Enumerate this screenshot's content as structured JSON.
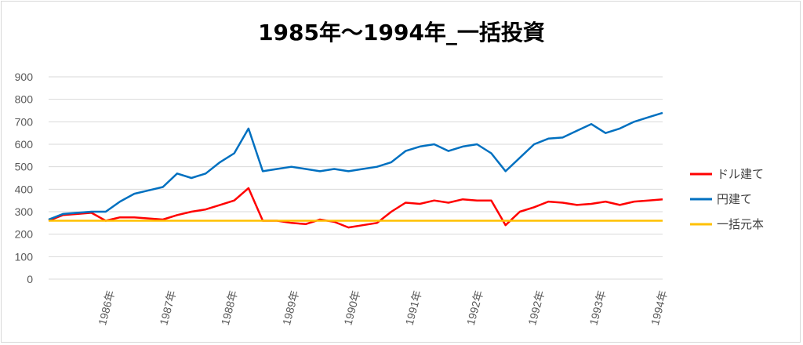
{
  "chart_data": {
    "type": "line",
    "title": "1985年～1994年_一括投資",
    "xlabel": "",
    "ylabel": "",
    "ylim": [
      0,
      900
    ],
    "yticks": [
      0,
      100,
      200,
      300,
      400,
      500,
      600,
      700,
      800,
      900
    ],
    "grid": true,
    "legend_position": "right",
    "xtick_labels": [
      "1986年",
      "1987年",
      "1988年",
      "1989年",
      "1990年",
      "1991年",
      "1992年",
      "1992年",
      "1993年",
      "1994年"
    ],
    "x": [
      1985.0,
      1985.25,
      1985.5,
      1985.75,
      1986.0,
      1986.25,
      1986.5,
      1986.75,
      1987.0,
      1987.25,
      1987.5,
      1987.75,
      1988.0,
      1988.25,
      1988.5,
      1988.75,
      1989.0,
      1989.25,
      1989.5,
      1989.75,
      1990.0,
      1990.25,
      1990.5,
      1990.75,
      1991.0,
      1991.25,
      1991.5,
      1991.75,
      1992.0,
      1992.25,
      1992.5,
      1992.75,
      1993.0,
      1993.25,
      1993.5,
      1993.75,
      1994.0,
      1994.25,
      1994.5,
      1994.75,
      1995.0,
      1995.25,
      1995.5,
      1995.75
    ],
    "series": [
      {
        "name": "ドル建て",
        "color": "#ff0000",
        "values": [
          260,
          285,
          290,
          295,
          260,
          275,
          275,
          270,
          265,
          285,
          300,
          310,
          330,
          350,
          405,
          260,
          260,
          250,
          245,
          265,
          255,
          230,
          240,
          250,
          300,
          340,
          335,
          350,
          340,
          355,
          350,
          350,
          240,
          300,
          320,
          345,
          340,
          330,
          335,
          345,
          330,
          345,
          350,
          355
        ]
      },
      {
        "name": "円建て",
        "color": "#0070c0",
        "values": [
          265,
          290,
          295,
          300,
          300,
          345,
          380,
          395,
          410,
          470,
          450,
          470,
          520,
          560,
          670,
          480,
          490,
          500,
          490,
          480,
          490,
          480,
          490,
          500,
          520,
          570,
          590,
          600,
          570,
          590,
          600,
          560,
          480,
          540,
          600,
          625,
          630,
          660,
          690,
          650,
          670,
          700,
          720,
          740
        ]
      },
      {
        "name": "一括元本",
        "color": "#ffc000",
        "values": [
          260,
          260,
          260,
          260,
          260,
          260,
          260,
          260,
          260,
          260,
          260,
          260,
          260,
          260,
          260,
          260,
          260,
          260,
          260,
          260,
          260,
          260,
          260,
          260,
          260,
          260,
          260,
          260,
          260,
          260,
          260,
          260,
          260,
          260,
          260,
          260,
          260,
          260,
          260,
          260,
          260,
          260,
          260,
          260
        ]
      }
    ]
  }
}
